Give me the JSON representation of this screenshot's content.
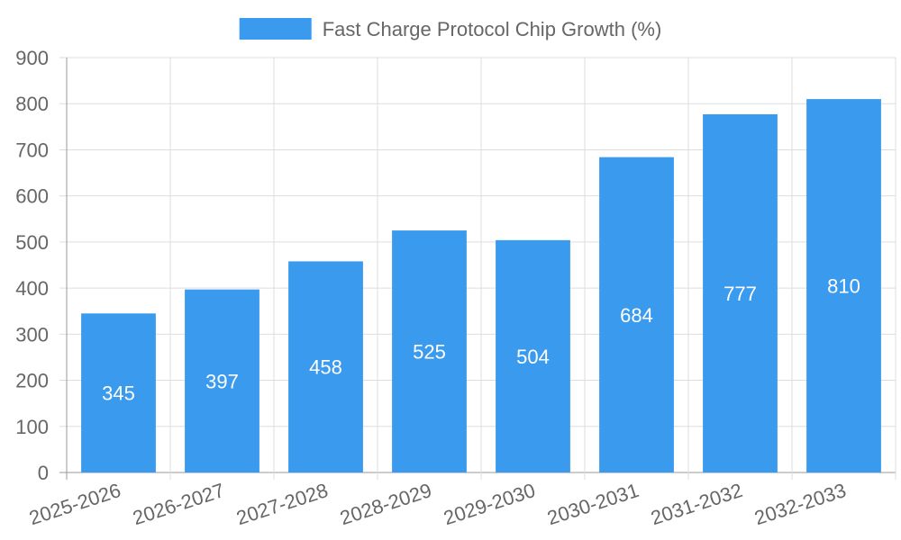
{
  "chart_data": {
    "type": "bar",
    "categories": [
      "2025-2026",
      "2026-2027",
      "2027-2028",
      "2028-2029",
      "2029-2030",
      "2030-2031",
      "2031-2032",
      "2032-2033"
    ],
    "series": [
      {
        "name": "Fast Charge Protocol Chip Growth (%)",
        "values": [
          345,
          397,
          458,
          525,
          504,
          684,
          777,
          810
        ],
        "color": "#3a9aee"
      }
    ],
    "ylim": [
      0,
      900
    ],
    "yticks": [
      0,
      100,
      200,
      300,
      400,
      500,
      600,
      700,
      800,
      900
    ],
    "grid": true,
    "legend_position": "top",
    "data_labels": true,
    "xlabel": "",
    "ylabel": ""
  }
}
